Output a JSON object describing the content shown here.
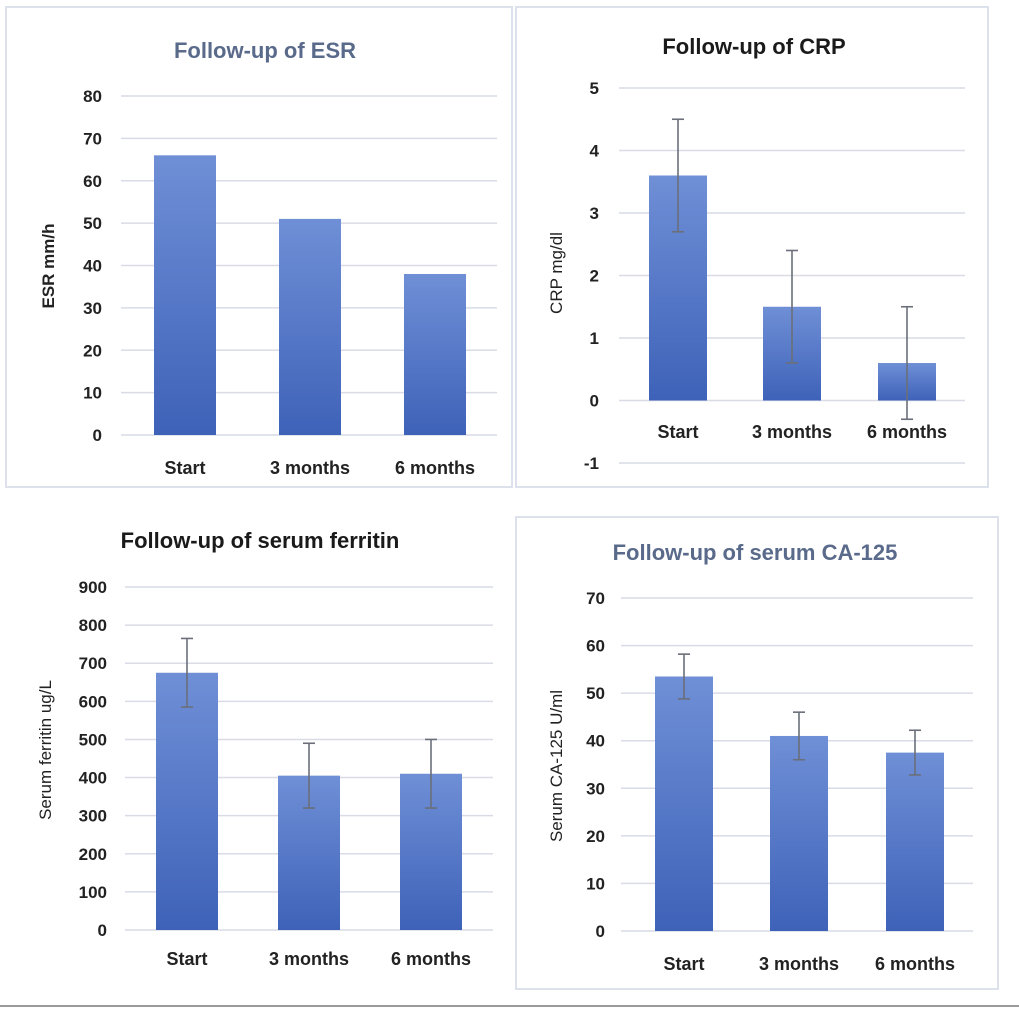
{
  "colors": {
    "bar_top": "#6f8fd6",
    "bar_bottom": "#3e62b8",
    "title_muted": "#5a6a8a",
    "title_dark": "#1a1a1a"
  },
  "chart_data": [
    {
      "type": "bar",
      "title": "Follow-up of ESR",
      "ylabel": "ESR mm/h",
      "categories": [
        "Start",
        "3 months",
        "6 months"
      ],
      "values": [
        66,
        51,
        38
      ],
      "ylim": [
        0,
        80
      ],
      "yticks": [
        0,
        10,
        20,
        30,
        40,
        50,
        60,
        70,
        80
      ],
      "error_bars": false,
      "grid": true
    },
    {
      "type": "bar",
      "title": "Follow-up of CRP",
      "ylabel": "CRP mg/dl",
      "categories": [
        "Start",
        "3 months",
        "6 months"
      ],
      "values": [
        3.6,
        1.5,
        0.6
      ],
      "errors": [
        0.9,
        0.9,
        0.9
      ],
      "ylim": [
        -1,
        5
      ],
      "yticks": [
        -1,
        0,
        1,
        2,
        3,
        4,
        5
      ],
      "error_bars": true,
      "grid": true
    },
    {
      "type": "bar",
      "title": "Follow-up of serum ferritin",
      "ylabel": "Serum ferritin ug/L",
      "categories": [
        "Start",
        "3 months",
        "6 months"
      ],
      "values": [
        675,
        405,
        410
      ],
      "errors": [
        90,
        85,
        90
      ],
      "ylim": [
        0,
        900
      ],
      "yticks": [
        0,
        100,
        200,
        300,
        400,
        500,
        600,
        700,
        800,
        900
      ],
      "error_bars": true,
      "grid": true
    },
    {
      "type": "bar",
      "title": "Follow-up of serum CA-125",
      "ylabel": "Serum CA-125 U/ml",
      "categories": [
        "Start",
        "3 months",
        "6 months"
      ],
      "values": [
        53.5,
        41,
        37.5
      ],
      "errors": [
        4.7,
        5,
        4.7
      ],
      "ylim": [
        0,
        70
      ],
      "yticks": [
        0,
        10,
        20,
        30,
        40,
        50,
        60,
        70
      ],
      "error_bars": true,
      "grid": true
    }
  ]
}
